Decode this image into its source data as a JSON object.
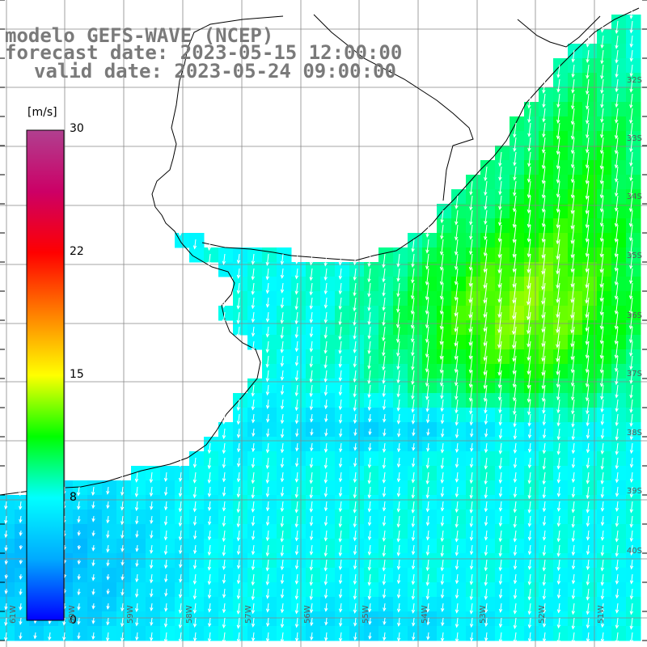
{
  "title": {
    "line1": "modelo GEFS-WAVE (NCEP)",
    "line2": "forecast date: 2023-05-15 12:00:00",
    "line3": "valid date: 2023-05-24 09:00:00"
  },
  "colorbar": {
    "unit": "[m/s]",
    "ticks": [
      "30",
      "22",
      "15",
      "8",
      "0"
    ],
    "range": [
      0,
      30
    ],
    "colors": [
      "#0000ff",
      "#00aaff",
      "#00ffff",
      "#00ff00",
      "#ffff00",
      "#ff8000",
      "#ff0000",
      "#cc0066",
      "#b04090"
    ]
  },
  "lat_labels": [
    "32S",
    "33S",
    "34S",
    "35S",
    "36S",
    "37S",
    "38S",
    "39S",
    "40S"
  ],
  "lon_labels": [
    "61W",
    "60W",
    "59W",
    "58W",
    "57W",
    "56W",
    "55W",
    "54W",
    "53W",
    "52W",
    "51W"
  ],
  "map_colors": {
    "land": "#ffffff",
    "coast": "#000000",
    "grid": "#888888",
    "arrows": "#ffffff"
  }
}
